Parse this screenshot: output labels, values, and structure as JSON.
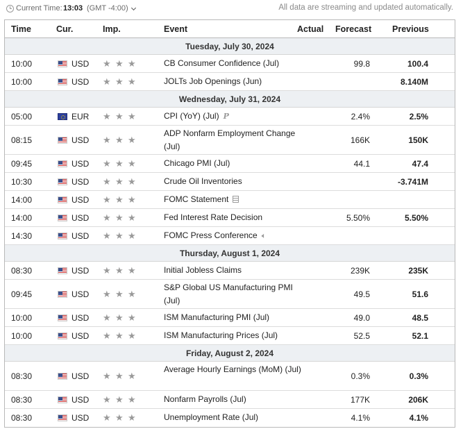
{
  "topbar": {
    "current_time_label": "Current Time:",
    "current_time": "13:03",
    "timezone": "(GMT -4:00)",
    "streaming_note": "All data are streaming and updated automatically."
  },
  "columns": {
    "time": "Time",
    "cur": "Cur.",
    "imp": "Imp.",
    "event": "Event",
    "actual": "Actual",
    "forecast": "Forecast",
    "previous": "Previous"
  },
  "days": [
    {
      "date": "Tuesday, July 30, 2024",
      "events": [
        {
          "time": "10:00",
          "flag": "us-flag-icon",
          "currency": "USD",
          "importance": 3,
          "event": "CB Consumer Confidence (Jul)",
          "actual": "",
          "forecast": "99.8",
          "previous": "100.4"
        },
        {
          "time": "10:00",
          "flag": "us-flag-icon",
          "currency": "USD",
          "importance": 3,
          "event": "JOLTs Job Openings (Jun)",
          "actual": "",
          "forecast": "",
          "previous": "8.140M"
        }
      ]
    },
    {
      "date": "Wednesday, July 31, 2024",
      "events": [
        {
          "time": "05:00",
          "flag": "eu-flag-icon",
          "currency": "EUR",
          "importance": 3,
          "event": "CPI (YoY) (Jul)",
          "actual": "",
          "forecast": "2.4%",
          "previous": "2.5%",
          "badge": "P"
        },
        {
          "time": "08:15",
          "flag": "us-flag-icon",
          "currency": "USD",
          "importance": 3,
          "event": "ADP Nonfarm Employment Change (Jul)",
          "actual": "",
          "forecast": "166K",
          "previous": "150K"
        },
        {
          "time": "09:45",
          "flag": "us-flag-icon",
          "currency": "USD",
          "importance": 3,
          "event": "Chicago PMI (Jul)",
          "actual": "",
          "forecast": "44.1",
          "previous": "47.4"
        },
        {
          "time": "10:30",
          "flag": "us-flag-icon",
          "currency": "USD",
          "importance": 3,
          "event": "Crude Oil Inventories",
          "actual": "",
          "forecast": "",
          "previous": "-3.741M"
        },
        {
          "time": "14:00",
          "flag": "us-flag-icon",
          "currency": "USD",
          "importance": 3,
          "event": "FOMC Statement",
          "actual": "",
          "forecast": "",
          "previous": "",
          "icon": "document-icon"
        },
        {
          "time": "14:00",
          "flag": "us-flag-icon",
          "currency": "USD",
          "importance": 3,
          "event": "Fed Interest Rate Decision",
          "actual": "",
          "forecast": "5.50%",
          "previous": "5.50%"
        },
        {
          "time": "14:30",
          "flag": "us-flag-icon",
          "currency": "USD",
          "importance": 3,
          "event": "FOMC Press Conference",
          "actual": "",
          "forecast": "",
          "previous": "",
          "icon": "speaker-icon"
        }
      ]
    },
    {
      "date": "Thursday, August 1, 2024",
      "events": [
        {
          "time": "08:30",
          "flag": "us-flag-icon",
          "currency": "USD",
          "importance": 3,
          "event": "Initial Jobless Claims",
          "actual": "",
          "forecast": "239K",
          "previous": "235K"
        },
        {
          "time": "09:45",
          "flag": "us-flag-icon",
          "currency": "USD",
          "importance": 3,
          "event": "S&P Global US Manufacturing PMI (Jul)",
          "actual": "",
          "forecast": "49.5",
          "previous": "51.6"
        },
        {
          "time": "10:00",
          "flag": "us-flag-icon",
          "currency": "USD",
          "importance": 3,
          "event": "ISM Manufacturing PMI (Jul)",
          "actual": "",
          "forecast": "49.0",
          "previous": "48.5"
        },
        {
          "time": "10:00",
          "flag": "us-flag-icon",
          "currency": "USD",
          "importance": 3,
          "event": "ISM Manufacturing Prices (Jul)",
          "actual": "",
          "forecast": "52.5",
          "previous": "52.1"
        }
      ]
    },
    {
      "date": "Friday, August 2, 2024",
      "events": [
        {
          "time": "08:30",
          "flag": "us-flag-icon",
          "currency": "USD",
          "importance": 3,
          "event": "Average Hourly Earnings (MoM) (Jul)",
          "actual": "",
          "forecast": "0.3%",
          "previous": "0.3%"
        },
        {
          "time": "08:30",
          "flag": "us-flag-icon",
          "currency": "USD",
          "importance": 3,
          "event": "Nonfarm Payrolls (Jul)",
          "actual": "",
          "forecast": "177K",
          "previous": "206K"
        },
        {
          "time": "08:30",
          "flag": "us-flag-icon",
          "currency": "USD",
          "importance": 3,
          "event": "Unemployment Rate (Jul)",
          "actual": "",
          "forecast": "4.1%",
          "previous": "4.1%"
        }
      ]
    }
  ]
}
